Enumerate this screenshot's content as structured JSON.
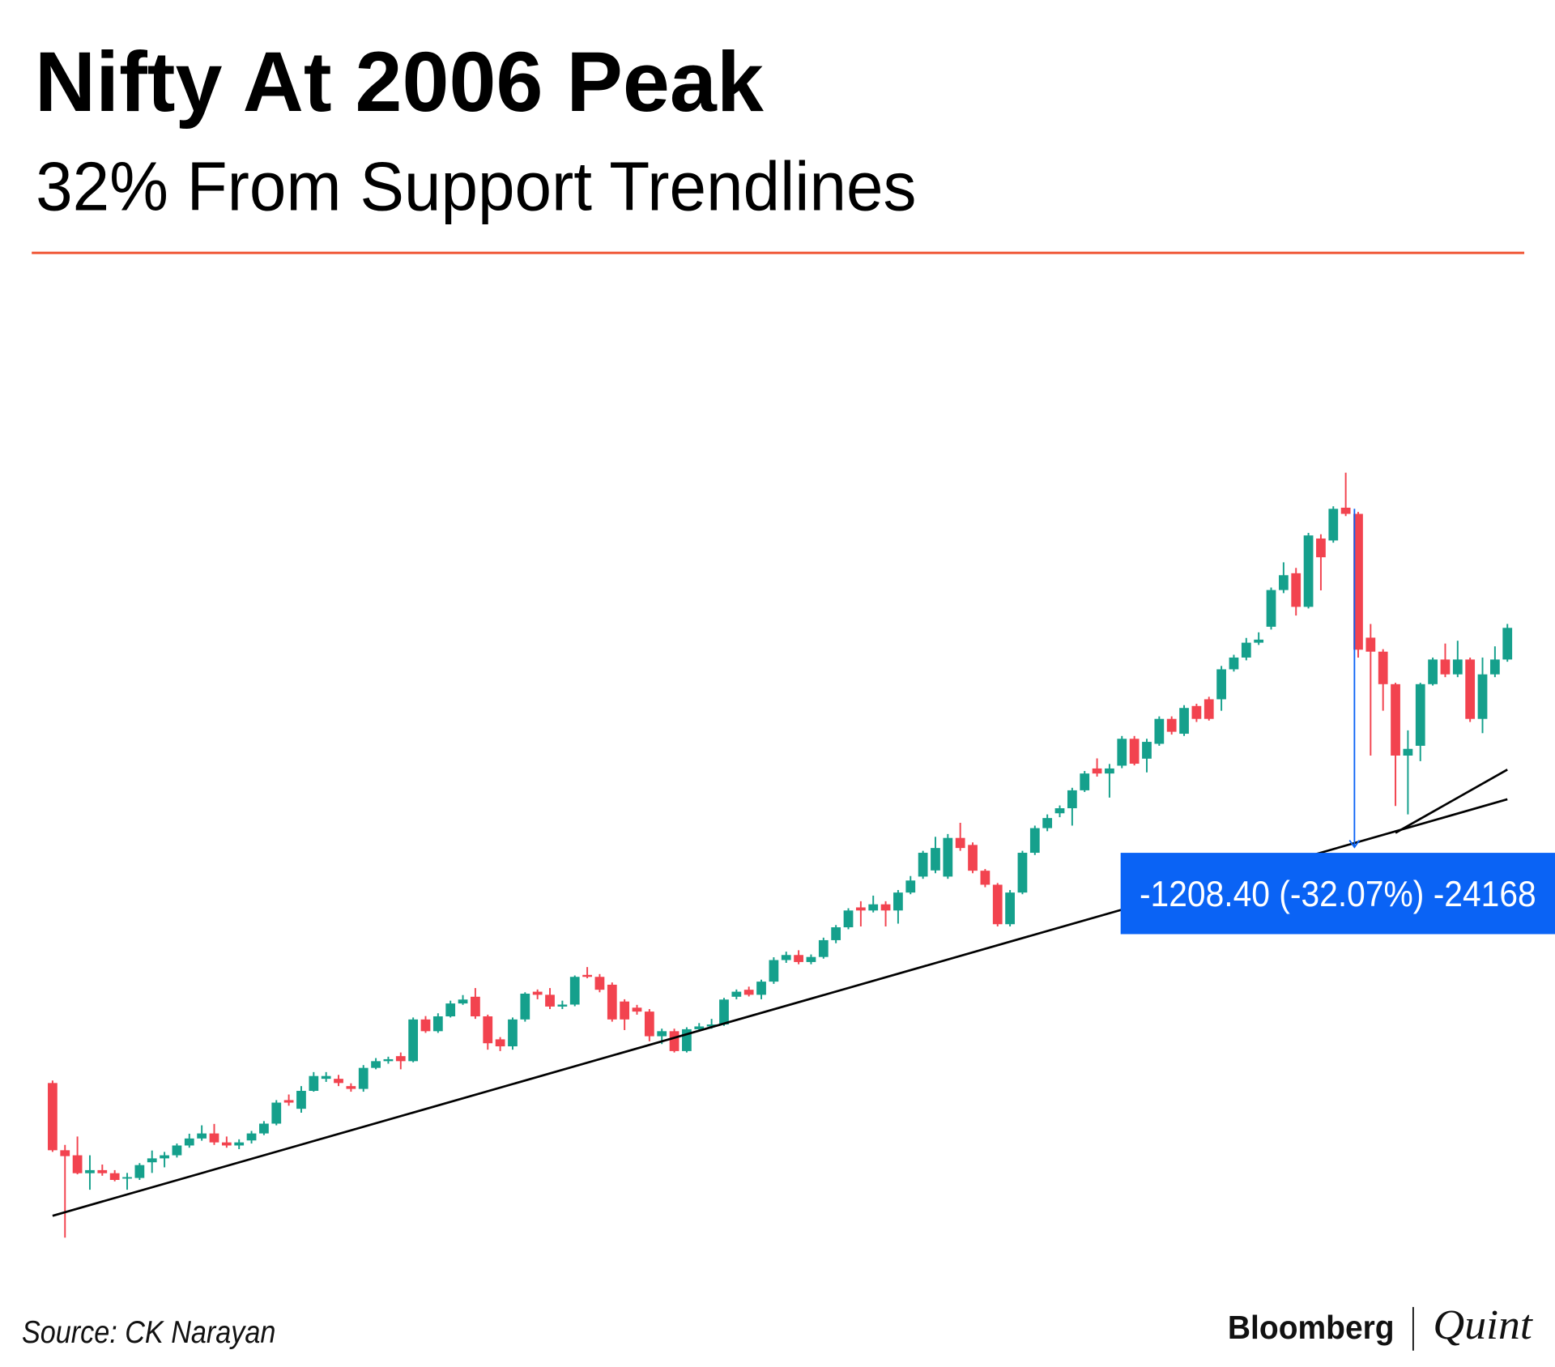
{
  "chart_data": {
    "type": "candlestick",
    "title": "Nifty At 2006 Peak",
    "subtitle": "32% From Support Trendlines",
    "source": "Source: CK Narayan",
    "logo": {
      "left": "Bloomberg",
      "right": "Quint"
    },
    "up_color": "#15a08c",
    "down_color": "#f2434f",
    "ylim": [
      1063,
      4490
    ],
    "categories": [
      null,
      null,
      null,
      null,
      null,
      null,
      null,
      null,
      null,
      null,
      null,
      null,
      null,
      null,
      null,
      null,
      null,
      null,
      null,
      null,
      null,
      null,
      null,
      null,
      null,
      null,
      null,
      null,
      null,
      null,
      null,
      null,
      null,
      null,
      null,
      null,
      null,
      null,
      null,
      null,
      null,
      null,
      null,
      null,
      null,
      null,
      null,
      null,
      null,
      null,
      null,
      null,
      null,
      null,
      null,
      null,
      null,
      null,
      null,
      null,
      null,
      null,
      null,
      null,
      null,
      null,
      null,
      null,
      null,
      null,
      null,
      null,
      null,
      null,
      null,
      null,
      null,
      null,
      null,
      null,
      null,
      null,
      null,
      null,
      null,
      null,
      null,
      null,
      null,
      null,
      null,
      null,
      null,
      null,
      null,
      null,
      null,
      null,
      null,
      null,
      null,
      null,
      null,
      null,
      null,
      null,
      null,
      null,
      null,
      null,
      null,
      null,
      null,
      null,
      null,
      null,
      null,
      null
    ],
    "open": [
      1721,
      1481,
      1463,
      1399,
      1410,
      1399,
      1382,
      1382,
      1438,
      1452,
      1463,
      1498,
      1523,
      1541,
      1509,
      1498,
      1516,
      1541,
      1576,
      1660,
      1629,
      1693,
      1736,
      1736,
      1710,
      1700,
      1775,
      1799,
      1817,
      1799,
      1948,
      1906,
      1959,
      2005,
      2029,
      1959,
      1877,
      1852,
      1948,
      2047,
      2036,
      1994,
      2001,
      2107,
      2100,
      2072,
      2012,
      1990,
      1976,
      1888,
      1906,
      1835,
      1913,
      1923,
      1930,
      2029,
      2054,
      2036,
      2083,
      2160,
      2178,
      2153,
      2171,
      2231,
      2277,
      2348,
      2337,
      2359,
      2337,
      2401,
      2458,
      2480,
      2458,
      2596,
      2571,
      2479,
      2429,
      2288,
      2401,
      2543,
      2631,
      2684,
      2702,
      2766,
      2844,
      2826,
      2854,
      2950,
      2879,
      2932,
      3021,
      2968,
      3067,
      3091,
      3091,
      3198,
      3240,
      3293,
      3350,
      3481,
      3541,
      3421,
      3665,
      3658,
      3775,
      3753,
      3311,
      3261,
      3145,
      2890,
      2925,
      3145,
      3233,
      3180,
      3233,
      3021,
      3180,
      3233
    ],
    "high": [
      1730,
      1500,
      1530,
      1463,
      1430,
      1410,
      1400,
      1435,
      1480,
      1475,
      1505,
      1540,
      1570,
      1575,
      1530,
      1520,
      1550,
      1585,
      1660,
      1680,
      1710,
      1760,
      1760,
      1750,
      1720,
      1785,
      1810,
      1815,
      1830,
      1955,
      1960,
      1970,
      2015,
      2035,
      2060,
      1965,
      1885,
      1955,
      2045,
      2055,
      2060,
      2015,
      2105,
      2135,
      2110,
      2080,
      2020,
      2000,
      1985,
      1915,
      1915,
      1920,
      1935,
      1950,
      2025,
      2055,
      2065,
      2090,
      2170,
      2190,
      2195,
      2180,
      2240,
      2285,
      2345,
      2370,
      2390,
      2370,
      2410,
      2460,
      2550,
      2600,
      2610,
      2650,
      2580,
      2485,
      2435,
      2410,
      2550,
      2640,
      2680,
      2712,
      2775,
      2835,
      2880,
      2860,
      2960,
      2960,
      2950,
      3030,
      3030,
      3070,
      3075,
      3100,
      3210,
      3250,
      3310,
      3330,
      3490,
      3580,
      3560,
      3685,
      3680,
      3780,
      3900,
      3760,
      3360,
      3270,
      3150,
      2980,
      3150,
      3240,
      3290,
      3300,
      3240,
      3240,
      3280,
      3360
    ],
    "low": [
      1475,
      1169,
      1395,
      1340,
      1390,
      1370,
      1340,
      1375,
      1400,
      1420,
      1455,
      1490,
      1515,
      1500,
      1490,
      1485,
      1505,
      1535,
      1570,
      1640,
      1615,
      1690,
      1725,
      1710,
      1690,
      1690,
      1770,
      1790,
      1770,
      1795,
      1900,
      1900,
      1955,
      2000,
      1950,
      1840,
      1835,
      1840,
      1940,
      2020,
      1985,
      1985,
      1995,
      2095,
      2045,
      1940,
      1910,
      1965,
      1870,
      1860,
      1830,
      1830,
      1905,
      1915,
      1925,
      2020,
      2030,
      2020,
      2075,
      2150,
      2145,
      2145,
      2165,
      2220,
      2270,
      2280,
      2330,
      2280,
      2290,
      2395,
      2450,
      2470,
      2450,
      2550,
      2470,
      2420,
      2280,
      2280,
      2395,
      2535,
      2620,
      2670,
      2640,
      2760,
      2815,
      2740,
      2845,
      2855,
      2830,
      2925,
      2965,
      2960,
      3010,
      3015,
      3050,
      3190,
      3230,
      3285,
      3340,
      3470,
      3390,
      3415,
      3480,
      3650,
      3745,
      3240,
      2890,
      3050,
      2710,
      2680,
      2870,
      3140,
      3170,
      3170,
      3010,
      2970,
      3170,
      3225
    ],
    "close": [
      1481,
      1460,
      1399,
      1410,
      1399,
      1375,
      1385,
      1428,
      1452,
      1463,
      1498,
      1523,
      1541,
      1509,
      1498,
      1509,
      1541,
      1576,
      1651,
      1651,
      1693,
      1746,
      1746,
      1721,
      1700,
      1775,
      1799,
      1806,
      1799,
      1948,
      1906,
      1959,
      2005,
      2019,
      1959,
      1863,
      1852,
      1948,
      2040,
      2036,
      1994,
      2001,
      2100,
      2100,
      2054,
      1948,
      1948,
      1976,
      1888,
      1906,
      1835,
      1913,
      1923,
      1930,
      2019,
      2047,
      2036,
      2083,
      2160,
      2178,
      2153,
      2171,
      2231,
      2277,
      2337,
      2337,
      2359,
      2337,
      2401,
      2444,
      2543,
      2560,
      2596,
      2560,
      2479,
      2429,
      2288,
      2401,
      2543,
      2631,
      2667,
      2702,
      2766,
      2826,
      2826,
      2844,
      2950,
      2861,
      2939,
      3021,
      2975,
      3060,
      3021,
      3021,
      3198,
      3240,
      3293,
      3304,
      3481,
      3534,
      3421,
      3676,
      3598,
      3771,
      3753,
      3268,
      3261,
      3145,
      2890,
      2914,
      3145,
      3233,
      3180,
      3233,
      3021,
      3180,
      3233,
      3346
    ],
    "trendlines": [
      {
        "start": [
          0,
          1247
        ],
        "end": [
          117,
          2734
        ]
      },
      {
        "start": [
          108,
          2614
        ],
        "end": [
          117,
          2840
        ]
      }
    ],
    "annotation": {
      "text": "-1208.40 (-32.07%) -24168",
      "x": 104.7,
      "from": 3771,
      "to": 2563,
      "color": "#0a63f5"
    }
  }
}
